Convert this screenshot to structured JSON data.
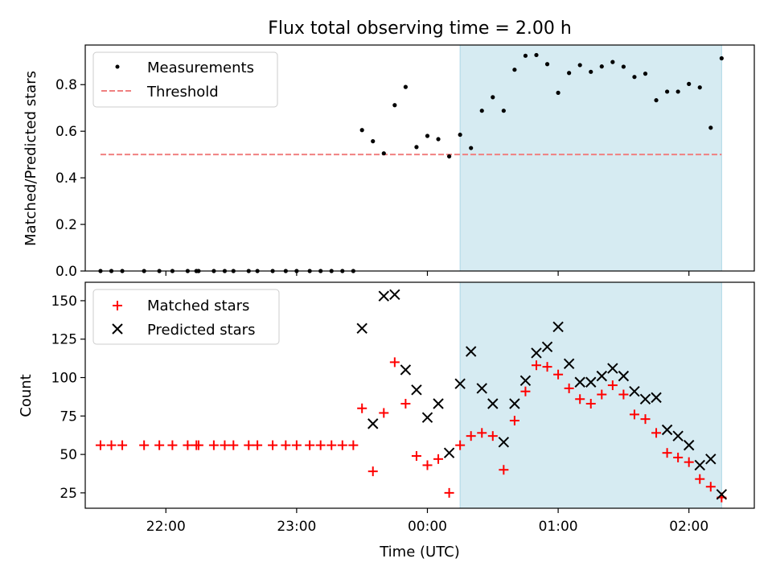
{
  "figure": {
    "title": "Flux total observing time = 2.00 h",
    "colors": {
      "highlight": "#add8e6",
      "threshold": "#f08080",
      "matched": "#ff0000",
      "predicted": "#000000",
      "measurement": "#000000"
    }
  },
  "chart_data": [
    {
      "type": "scatter",
      "position": "top",
      "title": "Flux total observing time = 2.00 h",
      "xlabel": "",
      "ylabel": "Matched/Predicted stars",
      "x_axis": "time (UTC), hours relative to 00:00",
      "xlim": [
        "21:23",
        "02:30"
      ],
      "ylim": [
        0,
        0.97
      ],
      "yticks": [
        0.0,
        0.2,
        0.4,
        0.6,
        0.8
      ],
      "ytick_labels": [
        "0.0",
        "0.2",
        "0.4",
        "0.6",
        "0.8"
      ],
      "highlight_span": {
        "from": "00:15",
        "to": "02:15"
      },
      "legend": {
        "placement": "upper left",
        "entries": [
          "Measurements",
          "Threshold"
        ]
      },
      "series": [
        {
          "name": "Measurements",
          "marker": "point",
          "points": [
            [
              "21:30",
              0.0
            ],
            [
              "21:35",
              0.0
            ],
            [
              "21:40",
              0.0
            ],
            [
              "21:50",
              0.0
            ],
            [
              "21:57",
              0.0
            ],
            [
              "22:03",
              0.0
            ],
            [
              "22:10",
              0.0
            ],
            [
              "22:14",
              0.0
            ],
            [
              "22:15",
              0.0
            ],
            [
              "22:22",
              0.0
            ],
            [
              "22:27",
              0.0
            ],
            [
              "22:31",
              0.0
            ],
            [
              "22:38",
              0.0
            ],
            [
              "22:42",
              0.0
            ],
            [
              "22:49",
              0.0
            ],
            [
              "22:55",
              0.0
            ],
            [
              "23:00",
              0.0
            ],
            [
              "23:06",
              0.0
            ],
            [
              "23:11",
              0.0
            ],
            [
              "23:16",
              0.0
            ],
            [
              "23:21",
              0.0
            ],
            [
              "23:26",
              0.0
            ],
            [
              "23:30",
              0.605
            ],
            [
              "23:35",
              0.557
            ],
            [
              "23:40",
              0.505
            ],
            [
              "23:45",
              0.712
            ],
            [
              "23:50",
              0.79
            ],
            [
              "23:55",
              0.532
            ],
            [
              "24:00",
              0.58
            ],
            [
              "24:05",
              0.566
            ],
            [
              "24:10",
              0.492
            ],
            [
              "24:15",
              0.585
            ],
            [
              "24:20",
              0.528
            ],
            [
              "24:25",
              0.688
            ],
            [
              "24:30",
              0.746
            ],
            [
              "24:35",
              0.688
            ],
            [
              "24:40",
              0.864
            ],
            [
              "24:45",
              0.924
            ],
            [
              "24:50",
              0.927
            ],
            [
              "24:55",
              0.888
            ],
            [
              "25:00",
              0.765
            ],
            [
              "25:05",
              0.85
            ],
            [
              "25:10",
              0.884
            ],
            [
              "25:15",
              0.855
            ],
            [
              "25:20",
              0.878
            ],
            [
              "25:25",
              0.897
            ],
            [
              "25:30",
              0.877
            ],
            [
              "25:35",
              0.833
            ],
            [
              "25:40",
              0.847
            ],
            [
              "25:45",
              0.733
            ],
            [
              "25:50",
              0.77
            ],
            [
              "25:55",
              0.77
            ],
            [
              "26:00",
              0.803
            ],
            [
              "26:05",
              0.788
            ],
            [
              "26:10",
              0.615
            ],
            [
              "26:15",
              0.913
            ]
          ]
        },
        {
          "name": "Threshold",
          "style": "dashed",
          "x": [
            "21:30",
            "02:15"
          ],
          "y": [
            0.5,
            0.5
          ]
        }
      ]
    },
    {
      "type": "scatter",
      "position": "bottom",
      "xlabel": "Time (UTC)",
      "ylabel": "Count",
      "xlim": [
        "21:23",
        "02:30"
      ],
      "ylim": [
        15,
        162
      ],
      "xticks": [
        "22:00",
        "23:00",
        "00:00",
        "01:00",
        "02:00"
      ],
      "yticks": [
        25,
        50,
        75,
        100,
        125,
        150
      ],
      "ytick_labels": [
        "25",
        "50",
        "75",
        "100",
        "125",
        "150"
      ],
      "highlight_span": {
        "from": "00:15",
        "to": "02:15"
      },
      "legend": {
        "placement": "upper left",
        "entries": [
          "Matched stars",
          "Predicted stars"
        ]
      },
      "series": [
        {
          "name": "Matched stars",
          "marker": "plus",
          "points": [
            [
              "21:30",
              56
            ],
            [
              "21:35",
              56
            ],
            [
              "21:40",
              56
            ],
            [
              "21:50",
              56
            ],
            [
              "21:57",
              56
            ],
            [
              "22:03",
              56
            ],
            [
              "22:10",
              56
            ],
            [
              "22:14",
              56
            ],
            [
              "22:15",
              56
            ],
            [
              "22:22",
              56
            ],
            [
              "22:27",
              56
            ],
            [
              "22:31",
              56
            ],
            [
              "22:38",
              56
            ],
            [
              "22:42",
              56
            ],
            [
              "22:49",
              56
            ],
            [
              "22:55",
              56
            ],
            [
              "23:00",
              56
            ],
            [
              "23:06",
              56
            ],
            [
              "23:11",
              56
            ],
            [
              "23:16",
              56
            ],
            [
              "23:21",
              56
            ],
            [
              "23:26",
              56
            ],
            [
              "23:30",
              80
            ],
            [
              "23:35",
              39
            ],
            [
              "23:40",
              77
            ],
            [
              "23:45",
              110
            ],
            [
              "23:50",
              83
            ],
            [
              "23:55",
              49
            ],
            [
              "24:00",
              43
            ],
            [
              "24:05",
              47
            ],
            [
              "24:10",
              25
            ],
            [
              "24:15",
              56
            ],
            [
              "24:20",
              62
            ],
            [
              "24:25",
              64
            ],
            [
              "24:30",
              62
            ],
            [
              "24:35",
              40
            ],
            [
              "24:40",
              72
            ],
            [
              "24:45",
              91
            ],
            [
              "24:50",
              108
            ],
            [
              "24:55",
              107
            ],
            [
              "25:00",
              102
            ],
            [
              "25:05",
              93
            ],
            [
              "25:10",
              86
            ],
            [
              "25:15",
              83
            ],
            [
              "25:20",
              89
            ],
            [
              "25:25",
              95
            ],
            [
              "25:30",
              89
            ],
            [
              "25:35",
              76
            ],
            [
              "25:40",
              73
            ],
            [
              "25:45",
              64
            ],
            [
              "25:50",
              51
            ],
            [
              "25:55",
              48
            ],
            [
              "26:00",
              45
            ],
            [
              "26:05",
              34
            ],
            [
              "26:10",
              29
            ],
            [
              "26:15",
              22
            ]
          ]
        },
        {
          "name": "Predicted stars",
          "marker": "x",
          "points": [
            [
              "23:30",
              132
            ],
            [
              "23:35",
              70
            ],
            [
              "23:40",
              153
            ],
            [
              "23:45",
              154
            ],
            [
              "23:50",
              105
            ],
            [
              "23:55",
              92
            ],
            [
              "24:00",
              74
            ],
            [
              "24:05",
              83
            ],
            [
              "24:10",
              51
            ],
            [
              "24:15",
              96
            ],
            [
              "24:20",
              117
            ],
            [
              "24:25",
              93
            ],
            [
              "24:30",
              83
            ],
            [
              "24:35",
              58
            ],
            [
              "24:40",
              83
            ],
            [
              "24:45",
              98
            ],
            [
              "24:50",
              116
            ],
            [
              "24:55",
              120
            ],
            [
              "25:00",
              133
            ],
            [
              "25:05",
              109
            ],
            [
              "25:10",
              97
            ],
            [
              "25:15",
              97
            ],
            [
              "25:20",
              101
            ],
            [
              "25:25",
              106
            ],
            [
              "25:30",
              101
            ],
            [
              "25:35",
              91
            ],
            [
              "25:40",
              86
            ],
            [
              "25:45",
              87
            ],
            [
              "25:50",
              66
            ],
            [
              "25:55",
              62
            ],
            [
              "26:00",
              56
            ],
            [
              "26:05",
              43
            ],
            [
              "26:10",
              47
            ],
            [
              "26:15",
              24
            ]
          ]
        }
      ]
    }
  ]
}
